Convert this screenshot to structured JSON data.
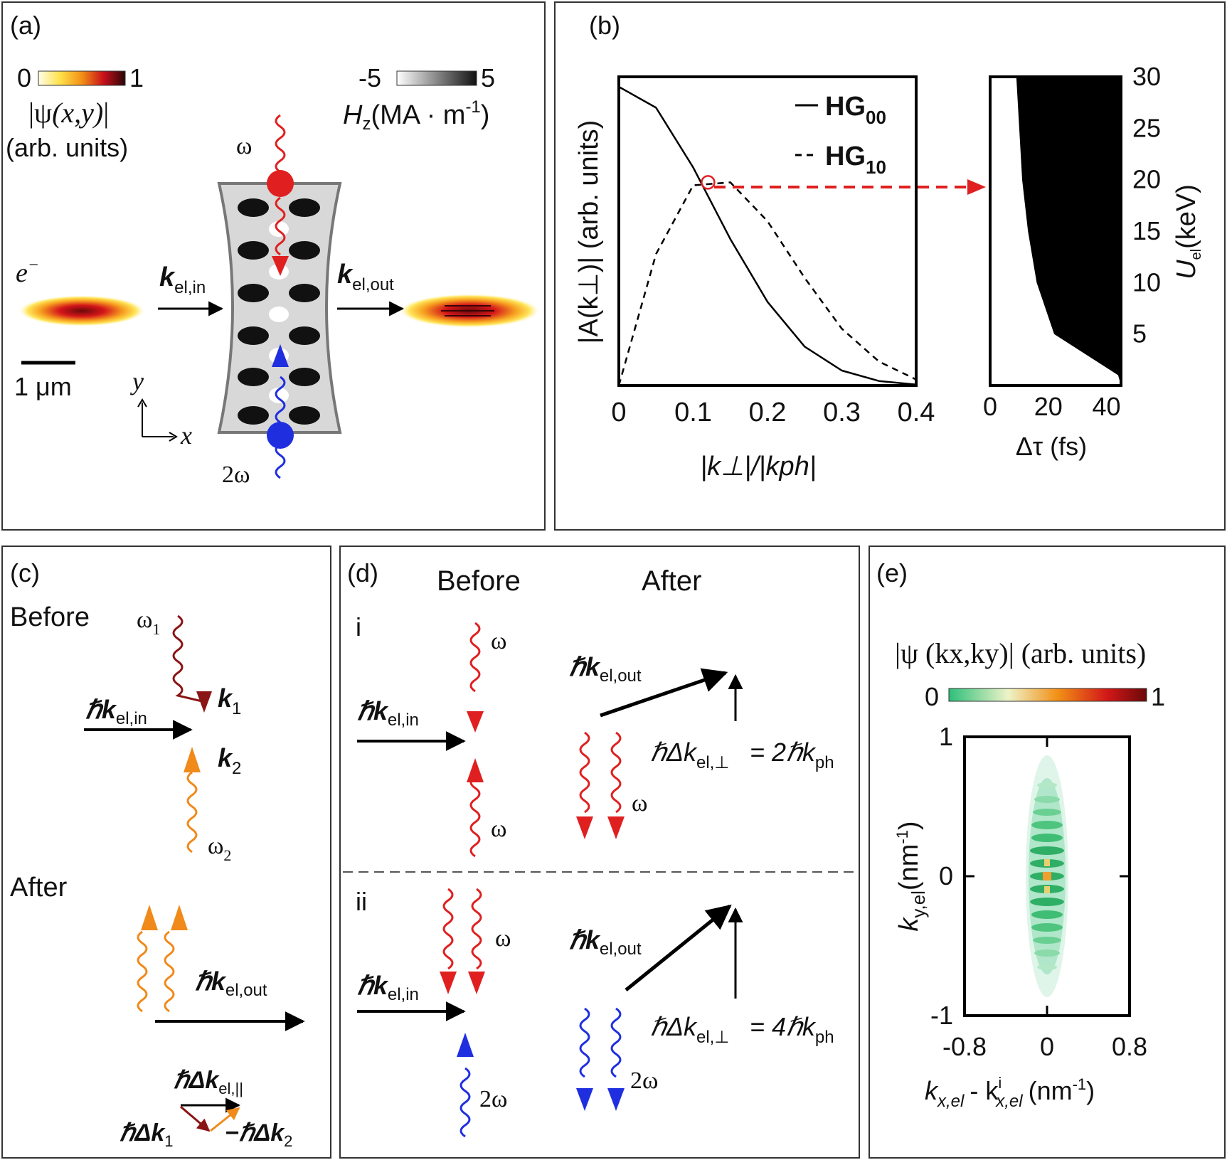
{
  "panels": {
    "a": {
      "label": "(a)",
      "cbar_psi": {
        "min": "0",
        "max": "1",
        "title_pre": "|",
        "title": "ψ",
        "title_args": "(x,y)",
        "title_post": "|",
        "units": "(arb. units)"
      },
      "cbar_h": {
        "min": "-5",
        "max": "5",
        "title_h": "H",
        "title_sub": "z",
        "title_units": "(MA · m",
        "title_sup": "-1",
        "title_close": ")"
      },
      "electron": "e",
      "electron_sup": "−",
      "k_in": "k",
      "k_in_sub": "el,in",
      "k_out": "k",
      "k_out_sub": "el,out",
      "omega": "ω",
      "two_omega": "2ω",
      "scalebar": "1 μm",
      "axis_x": "x",
      "axis_y": "y"
    },
    "b": {
      "label": "(b)",
      "legend": [
        {
          "name": "HG",
          "sub": "00",
          "style": "solid"
        },
        {
          "name": "HG",
          "sub": "10",
          "style": "dashed"
        }
      ],
      "ylabel": "|A(k⊥)| (arb. units)",
      "xlabel": "|k⊥|/|kph|",
      "xticks": [
        "0",
        "0.1",
        "0.2",
        "0.3",
        "0.4"
      ],
      "right_xticks": [
        "0",
        "20",
        "40"
      ],
      "right_yticks": [
        "5",
        "10",
        "15",
        "20",
        "25",
        "30"
      ],
      "right_xlabel": "Δτ (fs)",
      "right_ylabel": "U",
      "right_ylabel_sub": "el",
      "right_ylabel_units": "(keV)"
    },
    "c": {
      "label": "(c)",
      "before": "Before",
      "after": "After",
      "omega1": "ω",
      "omega1_sub": "1",
      "omega2": "ω",
      "omega2_sub": "2",
      "k1": "k",
      "k1_sub": "1",
      "k2": "k",
      "k2_sub": "2",
      "hk_in": "ℏk",
      "hk_in_sub": "el,in",
      "hk_out": "ℏk",
      "hk_out_sub": "el,out",
      "dk_par": "ℏΔk",
      "dk_par_sub": "el,||",
      "dk1": "ℏΔk",
      "dk1_sub": "1",
      "dk2": "−ℏΔk",
      "dk2_sub": "2"
    },
    "d": {
      "label": "(d)",
      "before": "Before",
      "after": "After",
      "row_i": "i",
      "row_ii": "ii",
      "omega": "ω",
      "two_omega": "2ω",
      "hk_in": "ℏk",
      "hk_in_sub": "el,in",
      "hk_out": "ℏk",
      "hk_out_sub": "el,out",
      "dk_perp": "ℏΔk",
      "dk_perp_sub": "el,⊥",
      "eq_i": "= 2ℏk",
      "eq_i_sub": "ph",
      "eq_ii": "= 4ℏk",
      "eq_ii_sub": "ph"
    },
    "e": {
      "label": "(e)",
      "cbar_title": "|ψ (kx,ky)| (arb. units)",
      "cbar_min": "0",
      "cbar_max": "1",
      "yticks": [
        "1",
        "0",
        "-1"
      ],
      "xticks": [
        "-0.8",
        "0",
        "0.8"
      ],
      "ylabel": "k",
      "ylabel_sub": "y,el",
      "ylabel_units": "(nm",
      "xlabel": "k",
      "xlabel_sub": "x,el",
      "xlabel_mid": "- k",
      "xlabel_sup": "i",
      "xlabel_sub2": "x,el",
      "xlabel_units": "(nm"
    }
  },
  "chart_data": [
    {
      "type": "line",
      "panel": "b-left",
      "xlabel": "|k⊥|/|kph|",
      "ylabel": "|A(k⊥)| (arb. units)",
      "xlim": [
        0,
        0.4
      ],
      "series": [
        {
          "name": "HG00",
          "x": [
            0,
            0.05,
            0.1,
            0.15,
            0.2,
            0.25,
            0.3,
            0.35,
            0.4
          ],
          "y": [
            1.0,
            0.93,
            0.73,
            0.49,
            0.28,
            0.13,
            0.05,
            0.015,
            0.003
          ]
        },
        {
          "name": "HG10",
          "x": [
            0,
            0.05,
            0.1,
            0.15,
            0.2,
            0.25,
            0.3,
            0.35,
            0.4
          ],
          "y": [
            0.0,
            0.44,
            0.67,
            0.68,
            0.55,
            0.36,
            0.19,
            0.08,
            0.02
          ]
        }
      ],
      "annotation": {
        "x": 0.12,
        "y": 0.68
      }
    },
    {
      "type": "area",
      "panel": "b-right",
      "xlabel": "Δτ (fs)",
      "ylabel": "U el (keV)",
      "xlim": [
        0,
        45
      ],
      "ylim": [
        0,
        30
      ],
      "boundary": {
        "U": [
          30,
          25,
          20,
          15,
          10,
          5,
          1
        ],
        "tau": [
          9,
          10,
          11,
          13,
          16,
          22,
          44
        ]
      }
    }
  ],
  "colors": {
    "red": "#e02020",
    "blue": "#1f2fe0",
    "orange": "#f08a1a",
    "darkred": "#8b1414",
    "green": "#3dc27a"
  }
}
